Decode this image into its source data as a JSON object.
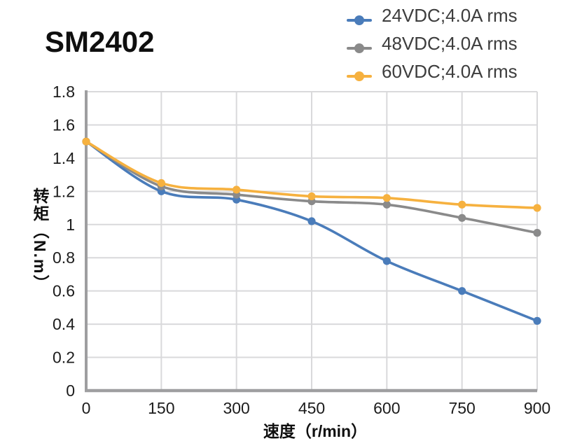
{
  "title": "SM2402",
  "legend": {
    "position": "top-right",
    "items": [
      {
        "label": "24VDC;4.0A rms",
        "color": "#4A7CBA"
      },
      {
        "label": "48VDC;4.0A rms",
        "color": "#8A8A8A"
      },
      {
        "label": "60VDC;4.0A rms",
        "color": "#F6B13F"
      }
    ]
  },
  "chart_data": {
    "type": "line",
    "title": "SM2402",
    "xlabel": "速度（r/min）",
    "ylabel": "转矩（N.m）",
    "xlim": [
      0,
      900
    ],
    "ylim": [
      0,
      1.8
    ],
    "x_ticks": [
      0,
      150,
      300,
      450,
      600,
      750,
      900
    ],
    "y_ticks": [
      0,
      0.2,
      0.4,
      0.6,
      0.8,
      1,
      1.2,
      1.4,
      1.6,
      1.8
    ],
    "grid": true,
    "legend_position": "top-right",
    "x": [
      0,
      150,
      300,
      450,
      600,
      750,
      900
    ],
    "series": [
      {
        "name": "24VDC;4.0A rms",
        "color": "#4A7CBA",
        "values": [
          1.5,
          1.2,
          1.15,
          1.02,
          0.78,
          0.6,
          0.42
        ]
      },
      {
        "name": "48VDC;4.0A rms",
        "color": "#8A8A8A",
        "values": [
          1.5,
          1.23,
          1.18,
          1.14,
          1.12,
          1.04,
          0.95
        ]
      },
      {
        "name": "60VDC;4.0A rms",
        "color": "#F6B13F",
        "values": [
          1.5,
          1.25,
          1.21,
          1.17,
          1.16,
          1.12,
          1.1
        ]
      }
    ],
    "colors": {
      "grid": "#D9D9DB",
      "axis": "#9E9EA0",
      "tick_text": "#1C1C1C"
    }
  }
}
